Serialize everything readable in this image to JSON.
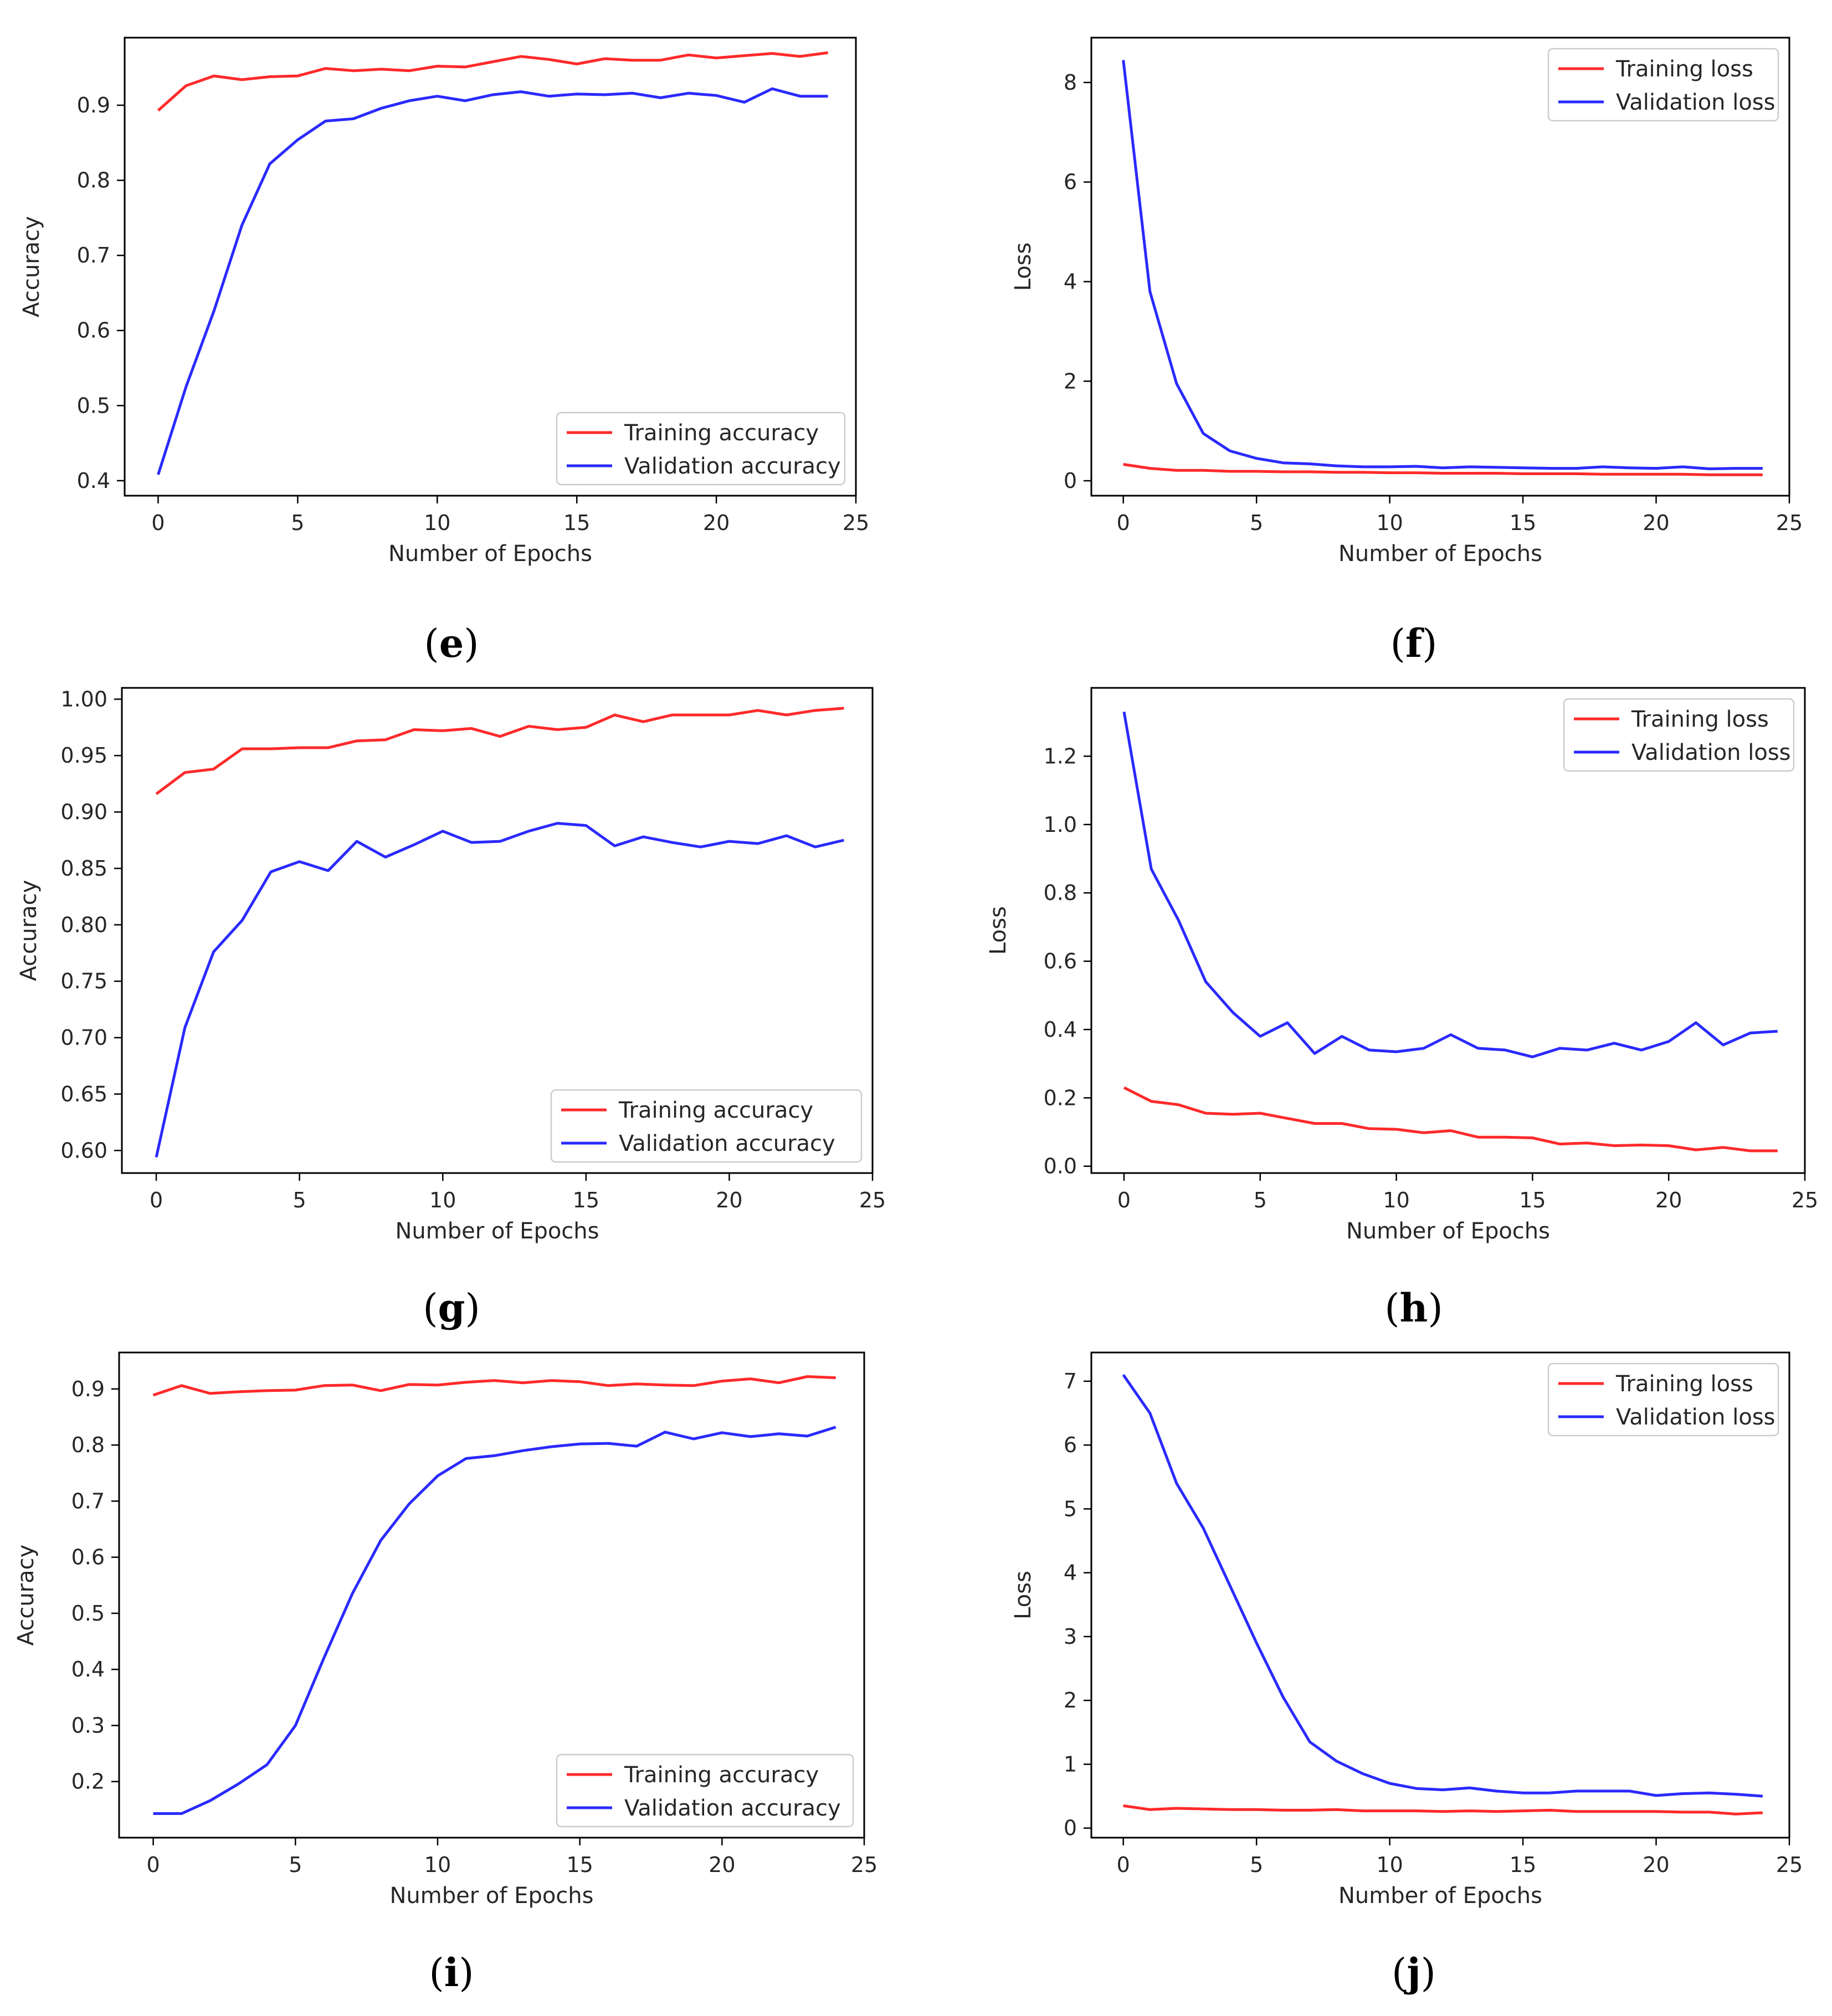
{
  "panels": [
    {
      "caption": {
        "open": "(",
        "letter": "e",
        "close": ")"
      },
      "chart_data": {
        "type": "line",
        "xlabel": "Number of Epochs",
        "ylabel": "Accuracy",
        "xlim": [
          -1.2,
          25
        ],
        "ylim": [
          0.38,
          0.99
        ],
        "xticks": [
          0,
          5,
          10,
          15,
          20,
          25
        ],
        "yticks": [
          0.4,
          0.5,
          0.6,
          0.7,
          0.8,
          0.9
        ],
        "ytick_labels": [
          "0.4",
          "0.5",
          "0.6",
          "0.7",
          "0.8",
          "0.9"
        ],
        "legend_position": "lower-right",
        "x": [
          0,
          1,
          2,
          3,
          4,
          5,
          6,
          7,
          8,
          9,
          10,
          11,
          12,
          13,
          14,
          15,
          16,
          17,
          18,
          19,
          20,
          21,
          22,
          23,
          24
        ],
        "series": [
          {
            "name": "Training accuracy",
            "color": "#ff2a2a",
            "values": [
              0.893,
              0.926,
              0.939,
              0.934,
              0.938,
              0.939,
              0.949,
              0.946,
              0.948,
              0.946,
              0.952,
              0.951,
              0.958,
              0.965,
              0.961,
              0.955,
              0.962,
              0.96,
              0.96,
              0.967,
              0.963,
              0.966,
              0.969,
              0.965,
              0.97
            ]
          },
          {
            "name": "Validation accuracy",
            "color": "#2a2aff",
            "values": [
              0.408,
              0.525,
              0.626,
              0.74,
              0.822,
              0.854,
              0.879,
              0.882,
              0.896,
              0.906,
              0.912,
              0.906,
              0.914,
              0.918,
              0.912,
              0.915,
              0.914,
              0.916,
              0.91,
              0.916,
              0.913,
              0.904,
              0.922,
              0.912,
              0.912
            ]
          }
        ]
      }
    },
    {
      "caption": {
        "open": "(",
        "letter": "f",
        "close": ")"
      },
      "chart_data": {
        "type": "line",
        "xlabel": "Number of Epochs",
        "ylabel": "Loss",
        "xlim": [
          -1.2,
          25
        ],
        "ylim": [
          -0.3,
          8.9
        ],
        "xticks": [
          0,
          5,
          10,
          15,
          20,
          25
        ],
        "yticks": [
          0,
          2,
          4,
          6,
          8
        ],
        "ytick_labels": [
          "0",
          "2",
          "4",
          "6",
          "8"
        ],
        "legend_position": "upper-right",
        "x": [
          0,
          1,
          2,
          3,
          4,
          5,
          6,
          7,
          8,
          9,
          10,
          11,
          12,
          13,
          14,
          15,
          16,
          17,
          18,
          19,
          20,
          21,
          22,
          23,
          24
        ],
        "series": [
          {
            "name": "Training loss",
            "color": "#ff2a2a",
            "values": [
              0.33,
              0.25,
              0.21,
              0.21,
              0.19,
              0.19,
              0.18,
              0.18,
              0.17,
              0.17,
              0.16,
              0.16,
              0.15,
              0.15,
              0.15,
              0.14,
              0.14,
              0.14,
              0.13,
              0.13,
              0.13,
              0.13,
              0.12,
              0.12,
              0.12
            ]
          },
          {
            "name": "Validation loss",
            "color": "#2a2aff",
            "values": [
              8.45,
              3.8,
              1.95,
              0.95,
              0.6,
              0.45,
              0.36,
              0.34,
              0.3,
              0.28,
              0.28,
              0.29,
              0.26,
              0.28,
              0.27,
              0.26,
              0.25,
              0.25,
              0.28,
              0.26,
              0.25,
              0.28,
              0.24,
              0.25,
              0.25
            ]
          }
        ]
      }
    },
    {
      "caption": {
        "open": "(",
        "letter": "g",
        "close": ")"
      },
      "chart_data": {
        "type": "line",
        "xlabel": "Number of Epochs",
        "ylabel": "Accuracy",
        "xlim": [
          -1.2,
          25
        ],
        "ylim": [
          0.58,
          1.01
        ],
        "xticks": [
          0,
          5,
          10,
          15,
          20,
          25
        ],
        "yticks": [
          0.6,
          0.65,
          0.7,
          0.75,
          0.8,
          0.85,
          0.9,
          0.95,
          1.0
        ],
        "ytick_labels": [
          "0.60",
          "0.65",
          "0.70",
          "0.75",
          "0.80",
          "0.85",
          "0.90",
          "0.95",
          "1.00"
        ],
        "legend_position": "lower-right",
        "x": [
          0,
          1,
          2,
          3,
          4,
          5,
          6,
          7,
          8,
          9,
          10,
          11,
          12,
          13,
          14,
          15,
          16,
          17,
          18,
          19,
          20,
          21,
          22,
          23,
          24
        ],
        "series": [
          {
            "name": "Training accuracy",
            "color": "#ff2a2a",
            "values": [
              0.916,
              0.935,
              0.938,
              0.956,
              0.956,
              0.957,
              0.957,
              0.963,
              0.964,
              0.973,
              0.972,
              0.974,
              0.967,
              0.976,
              0.973,
              0.975,
              0.986,
              0.98,
              0.986,
              0.986,
              0.986,
              0.99,
              0.986,
              0.99,
              0.992
            ]
          },
          {
            "name": "Validation accuracy",
            "color": "#2a2aff",
            "values": [
              0.594,
              0.709,
              0.776,
              0.804,
              0.847,
              0.856,
              0.848,
              0.874,
              0.86,
              0.871,
              0.883,
              0.873,
              0.874,
              0.883,
              0.89,
              0.888,
              0.87,
              0.878,
              0.873,
              0.869,
              0.874,
              0.872,
              0.879,
              0.869,
              0.875
            ]
          }
        ]
      }
    },
    {
      "caption": {
        "open": "(",
        "letter": "h",
        "close": ")"
      },
      "chart_data": {
        "type": "line",
        "xlabel": "Number of Epochs",
        "ylabel": "Loss",
        "xlim": [
          -1.2,
          25
        ],
        "ylim": [
          -0.02,
          1.4
        ],
        "xticks": [
          0,
          5,
          10,
          15,
          20,
          25
        ],
        "yticks": [
          0.0,
          0.2,
          0.4,
          0.6,
          0.8,
          1.0,
          1.2
        ],
        "ytick_labels": [
          "0.0",
          "0.2",
          "0.4",
          "0.6",
          "0.8",
          "1.0",
          "1.2"
        ],
        "legend_position": "upper-right",
        "x": [
          0,
          1,
          2,
          3,
          4,
          5,
          6,
          7,
          8,
          9,
          10,
          11,
          12,
          13,
          14,
          15,
          16,
          17,
          18,
          19,
          20,
          21,
          22,
          23,
          24
        ],
        "series": [
          {
            "name": "Training loss",
            "color": "#ff2a2a",
            "values": [
              0.23,
              0.19,
              0.18,
              0.155,
              0.152,
              0.155,
              0.14,
              0.125,
              0.125,
              0.11,
              0.108,
              0.098,
              0.104,
              0.085,
              0.085,
              0.083,
              0.065,
              0.068,
              0.06,
              0.062,
              0.06,
              0.048,
              0.055,
              0.045,
              0.045
            ]
          },
          {
            "name": "Validation loss",
            "color": "#2a2aff",
            "values": [
              1.33,
              0.87,
              0.72,
              0.54,
              0.45,
              0.38,
              0.42,
              0.33,
              0.38,
              0.34,
              0.335,
              0.345,
              0.385,
              0.345,
              0.34,
              0.32,
              0.345,
              0.34,
              0.36,
              0.34,
              0.365,
              0.42,
              0.355,
              0.39,
              0.395
            ]
          }
        ]
      }
    },
    {
      "caption": {
        "open": "(",
        "letter": "i",
        "close": ")"
      },
      "chart_data": {
        "type": "line",
        "xlabel": "Number of Epochs",
        "ylabel": "Accuracy",
        "xlim": [
          -1.2,
          25
        ],
        "ylim": [
          0.1,
          0.965
        ],
        "xticks": [
          0,
          5,
          10,
          15,
          20,
          25
        ],
        "yticks": [
          0.2,
          0.3,
          0.4,
          0.5,
          0.6,
          0.7,
          0.8,
          0.9
        ],
        "ytick_labels": [
          "0.2",
          "0.3",
          "0.4",
          "0.5",
          "0.6",
          "0.7",
          "0.8",
          "0.9"
        ],
        "legend_position": "lower-right",
        "x": [
          0,
          1,
          2,
          3,
          4,
          5,
          6,
          7,
          8,
          9,
          10,
          11,
          12,
          13,
          14,
          15,
          16,
          17,
          18,
          19,
          20,
          21,
          22,
          23,
          24
        ],
        "series": [
          {
            "name": "Training accuracy",
            "color": "#ff2a2a",
            "values": [
              0.889,
              0.906,
              0.892,
              0.895,
              0.897,
              0.898,
              0.906,
              0.907,
              0.897,
              0.908,
              0.907,
              0.912,
              0.915,
              0.911,
              0.915,
              0.913,
              0.906,
              0.909,
              0.907,
              0.906,
              0.914,
              0.918,
              0.911,
              0.922,
              0.92
            ]
          },
          {
            "name": "Validation accuracy",
            "color": "#2a2aff",
            "values": [
              0.143,
              0.143,
              0.166,
              0.196,
              0.23,
              0.3,
              0.42,
              0.535,
              0.63,
              0.695,
              0.745,
              0.776,
              0.781,
              0.79,
              0.797,
              0.802,
              0.803,
              0.798,
              0.823,
              0.811,
              0.822,
              0.815,
              0.82,
              0.816,
              0.832
            ]
          }
        ]
      }
    },
    {
      "caption": {
        "open": "(",
        "letter": "j",
        "close": ")"
      },
      "chart_data": {
        "type": "line",
        "xlabel": "Number of Epochs",
        "ylabel": "Loss",
        "xlim": [
          -1.2,
          25
        ],
        "ylim": [
          -0.15,
          7.45
        ],
        "xticks": [
          0,
          5,
          10,
          15,
          20,
          25
        ],
        "yticks": [
          0,
          1,
          2,
          3,
          4,
          5,
          6,
          7
        ],
        "ytick_labels": [
          "0",
          "1",
          "2",
          "3",
          "4",
          "5",
          "6",
          "7"
        ],
        "legend_position": "upper-right",
        "x": [
          0,
          1,
          2,
          3,
          4,
          5,
          6,
          7,
          8,
          9,
          10,
          11,
          12,
          13,
          14,
          15,
          16,
          17,
          18,
          19,
          20,
          21,
          22,
          23,
          24
        ],
        "series": [
          {
            "name": "Training loss",
            "color": "#ff2a2a",
            "values": [
              0.35,
              0.29,
              0.31,
              0.3,
              0.29,
              0.29,
              0.28,
              0.28,
              0.29,
              0.27,
              0.27,
              0.27,
              0.26,
              0.27,
              0.26,
              0.27,
              0.28,
              0.26,
              0.26,
              0.26,
              0.26,
              0.25,
              0.25,
              0.22,
              0.24
            ]
          },
          {
            "name": "Validation loss",
            "color": "#2a2aff",
            "values": [
              7.1,
              6.5,
              5.4,
              4.7,
              3.8,
              2.9,
              2.05,
              1.35,
              1.05,
              0.85,
              0.7,
              0.62,
              0.6,
              0.63,
              0.58,
              0.55,
              0.55,
              0.58,
              0.58,
              0.58,
              0.51,
              0.54,
              0.55,
              0.53,
              0.5
            ]
          }
        ]
      }
    }
  ]
}
